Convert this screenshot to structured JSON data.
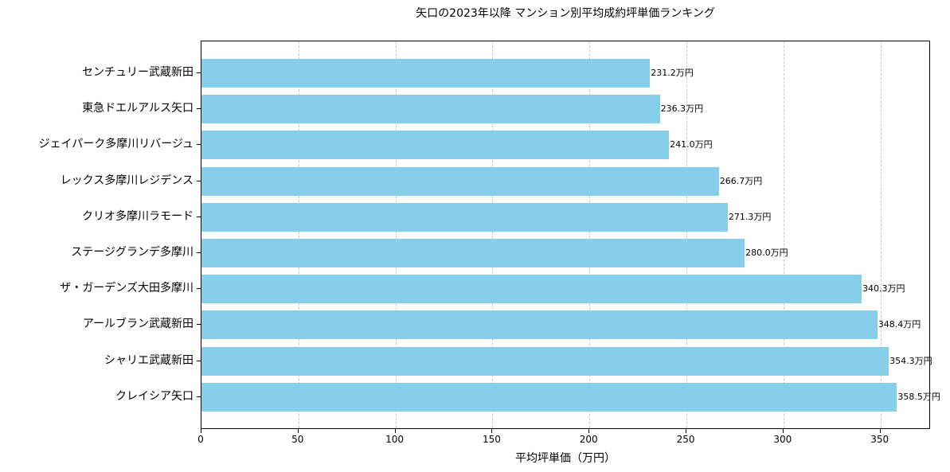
{
  "chart_data": {
    "type": "bar",
    "orientation": "horizontal",
    "title": "矢口の2023年以降 マンション別平均成約坪単価ランキング",
    "xlabel": "平均坪単価（万円）",
    "ylabel": "",
    "xlim": [
      0,
      376
    ],
    "xticks": [
      0,
      50,
      100,
      150,
      200,
      250,
      300,
      350
    ],
    "grid": {
      "x": true,
      "y": false,
      "style": "dashed"
    },
    "bar_color": "#87ceeb",
    "value_suffix": "万円",
    "categories": [
      "センチュリー武蔵新田",
      "東急ドエルアルス矢口",
      "ジェイパーク多摩川リバージュ",
      "レックス多摩川レジデンス",
      "クリオ多摩川ラモード",
      "ステージグランデ多摩川",
      "ザ・ガーデンズ大田多摩川",
      "アールブラン武蔵新田",
      "シャリエ武蔵新田",
      "クレイシア矢口"
    ],
    "values": [
      231.2,
      236.3,
      241.0,
      266.7,
      271.3,
      280.0,
      340.3,
      348.4,
      354.3,
      358.5
    ],
    "labels": [
      "231.2万円",
      "236.3万円",
      "241.0万円",
      "266.7万円",
      "271.3万円",
      "280.0万円",
      "340.3万円",
      "348.4万円",
      "354.3万円",
      "358.5万円"
    ]
  }
}
